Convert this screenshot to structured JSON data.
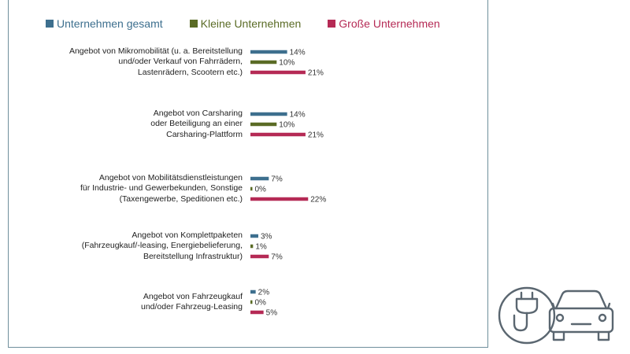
{
  "legend": [
    {
      "label": "Unternehmen gesamt",
      "color": "#3d6f8e"
    },
    {
      "label": "Kleine Unternehmen",
      "color": "#5a6b25"
    },
    {
      "label": "Große Unternehmen",
      "color": "#b52a55"
    }
  ],
  "chart_data": {
    "type": "bar",
    "orientation": "horizontal",
    "categories": [
      "Angebot von Mikromobilität (u. a. Bereitstellung und/oder Verkauf von Fahrrädern, Lastenrädern, Scootern etc.)",
      "Angebot von Carsharing oder Beteiligung an einer Carsharing-Plattform",
      "Angebot von Mobilitätsdienstleistungen für Industrie- und Gewerbekunden, Sonstige (Taxengewerbe, Speditionen etc.)",
      "Angebot von Komplettpaketen (Fahrzeugkauf/-leasing, Energiebelieferung, Bereitstellung Infrastruktur)",
      "Angebot von Fahrzeugkauf und/oder Fahrzeug-Leasing"
    ],
    "category_lines": [
      [
        "Angebot von Mikromobilität (u. a. Bereitstellung",
        "und/oder Verkauf von Fahrrädern,",
        "Lastenrädern, Scootern etc.)"
      ],
      [
        "Angebot von Carsharing",
        "oder Beteiligung an einer",
        "Carsharing-Plattform"
      ],
      [
        "Angebot von Mobilitätsdienstleistungen",
        "für Industrie- und Gewerbekunden, Sonstige",
        "(Taxengewerbe, Speditionen etc.)"
      ],
      [
        "Angebot von Komplettpaketen",
        "(Fahrzeugkauf/-leasing, Energiebelieferung,",
        "Bereitstellung Infrastruktur)"
      ],
      [
        "Angebot von Fahrzeugkauf",
        "und/oder Fahrzeug-Leasing"
      ]
    ],
    "series": [
      {
        "name": "Unternehmen gesamt",
        "values": [
          14,
          14,
          7,
          3,
          2
        ],
        "labels": [
          "14%",
          "14%",
          "7%",
          "3%",
          "2%"
        ]
      },
      {
        "name": "Kleine Unternehmen",
        "values": [
          10,
          10,
          0,
          1,
          0
        ],
        "labels": [
          "10%",
          "10%",
          "0%",
          "1%",
          "0%"
        ]
      },
      {
        "name": "Große Unternehmen",
        "values": [
          21,
          21,
          22,
          7,
          5
        ],
        "labels": [
          "21%",
          "21%",
          "22%",
          "7%",
          "5%"
        ]
      }
    ],
    "unit": "%",
    "axis_visible": false,
    "grid": false,
    "legend_position": "top"
  },
  "icon": {
    "name": "electric-car-charging-icon",
    "color": "#5a6670"
  }
}
